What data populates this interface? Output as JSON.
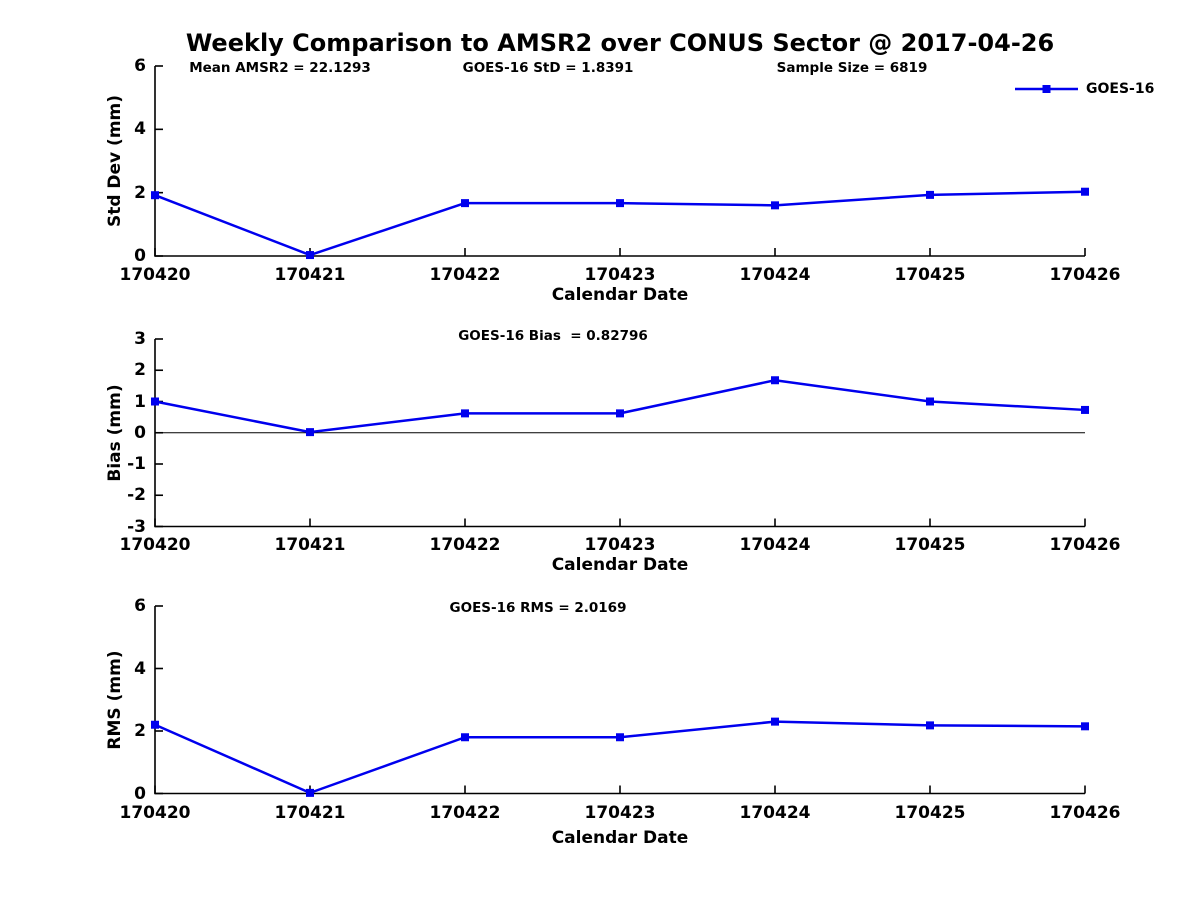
{
  "figure": {
    "title": "Weekly Comparison to AMSR2 over CONUS Sector @ 2017-04-26"
  },
  "legend": {
    "label": "GOES-16",
    "position": "top-right"
  },
  "colors": {
    "series": "#0000EE",
    "axis": "#000000",
    "text": "#000000",
    "zero_line": "#000000",
    "background": "#FFFFFF"
  },
  "chart_data": [
    {
      "type": "line",
      "id": "std-dev",
      "annotations": [
        "Mean AMSR2 = 22.1293",
        "GOES-16 StD = 1.8391",
        "Sample Size = 6819"
      ],
      "x": [
        "170420",
        "170421",
        "170422",
        "170423",
        "170424",
        "170425",
        "170426"
      ],
      "series": [
        {
          "name": "GOES-16",
          "marker": "square",
          "values": [
            1.92,
            0.03,
            1.67,
            1.67,
            1.6,
            1.93,
            2.03
          ]
        }
      ],
      "xlabel": "Calendar Date",
      "ylabel": "Std Dev (mm)",
      "ylim": [
        0,
        6
      ],
      "yticks": [
        0,
        2,
        4,
        6
      ],
      "grid": false,
      "legend": true
    },
    {
      "type": "line",
      "id": "bias",
      "annotations": [
        "GOES-16 Bias  = 0.82796"
      ],
      "x": [
        "170420",
        "170421",
        "170422",
        "170423",
        "170424",
        "170425",
        "170426"
      ],
      "series": [
        {
          "name": "GOES-16",
          "marker": "square",
          "values": [
            1.0,
            0.02,
            0.62,
            0.62,
            1.68,
            1.0,
            0.73
          ]
        }
      ],
      "xlabel": "Calendar Date",
      "ylabel": "Bias (mm)",
      "ylim": [
        -3,
        3
      ],
      "yticks": [
        -3,
        -2,
        -1,
        0,
        1,
        2,
        3
      ],
      "zero_line": true,
      "grid": false,
      "legend": false
    },
    {
      "type": "line",
      "id": "rms",
      "annotations": [
        "GOES-16 RMS = 2.0169"
      ],
      "x": [
        "170420",
        "170421",
        "170422",
        "170423",
        "170424",
        "170425",
        "170426"
      ],
      "series": [
        {
          "name": "GOES-16",
          "marker": "square",
          "values": [
            2.2,
            0.02,
            1.8,
            1.8,
            2.3,
            2.18,
            2.15
          ]
        }
      ],
      "xlabel": "Calendar Date",
      "ylabel": "RMS (mm)",
      "ylim": [
        0,
        6
      ],
      "yticks": [
        0,
        2,
        4,
        6
      ],
      "grid": false,
      "legend": false
    }
  ]
}
